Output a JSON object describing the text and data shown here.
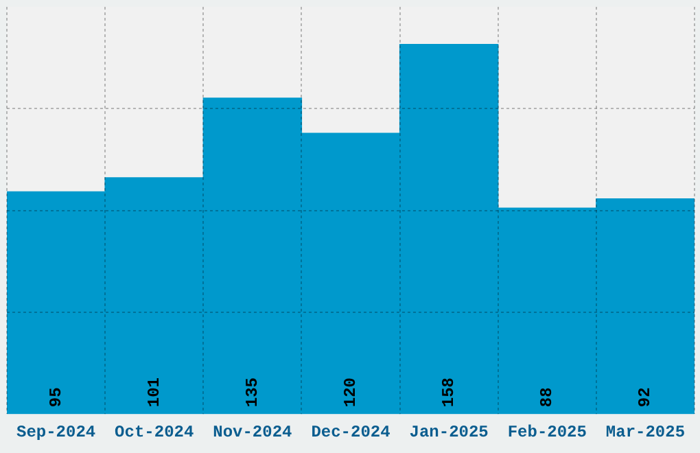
{
  "chart_data": {
    "type": "bar",
    "categories": [
      "Sep-2024",
      "Oct-2024",
      "Nov-2024",
      "Dec-2024",
      "Jan-2025",
      "Feb-2025",
      "Mar-2025"
    ],
    "values": [
      95,
      101,
      135,
      120,
      158,
      88,
      92
    ],
    "color": "#0099cc",
    "ylim": [
      0,
      174
    ],
    "yticks": [
      {
        "value": 43.5,
        "label": null
      },
      {
        "value": 87,
        "label": null
      },
      {
        "value": 130.5,
        "label": null
      }
    ],
    "grid": true,
    "data_labels": true,
    "tick_labels": "x"
  }
}
